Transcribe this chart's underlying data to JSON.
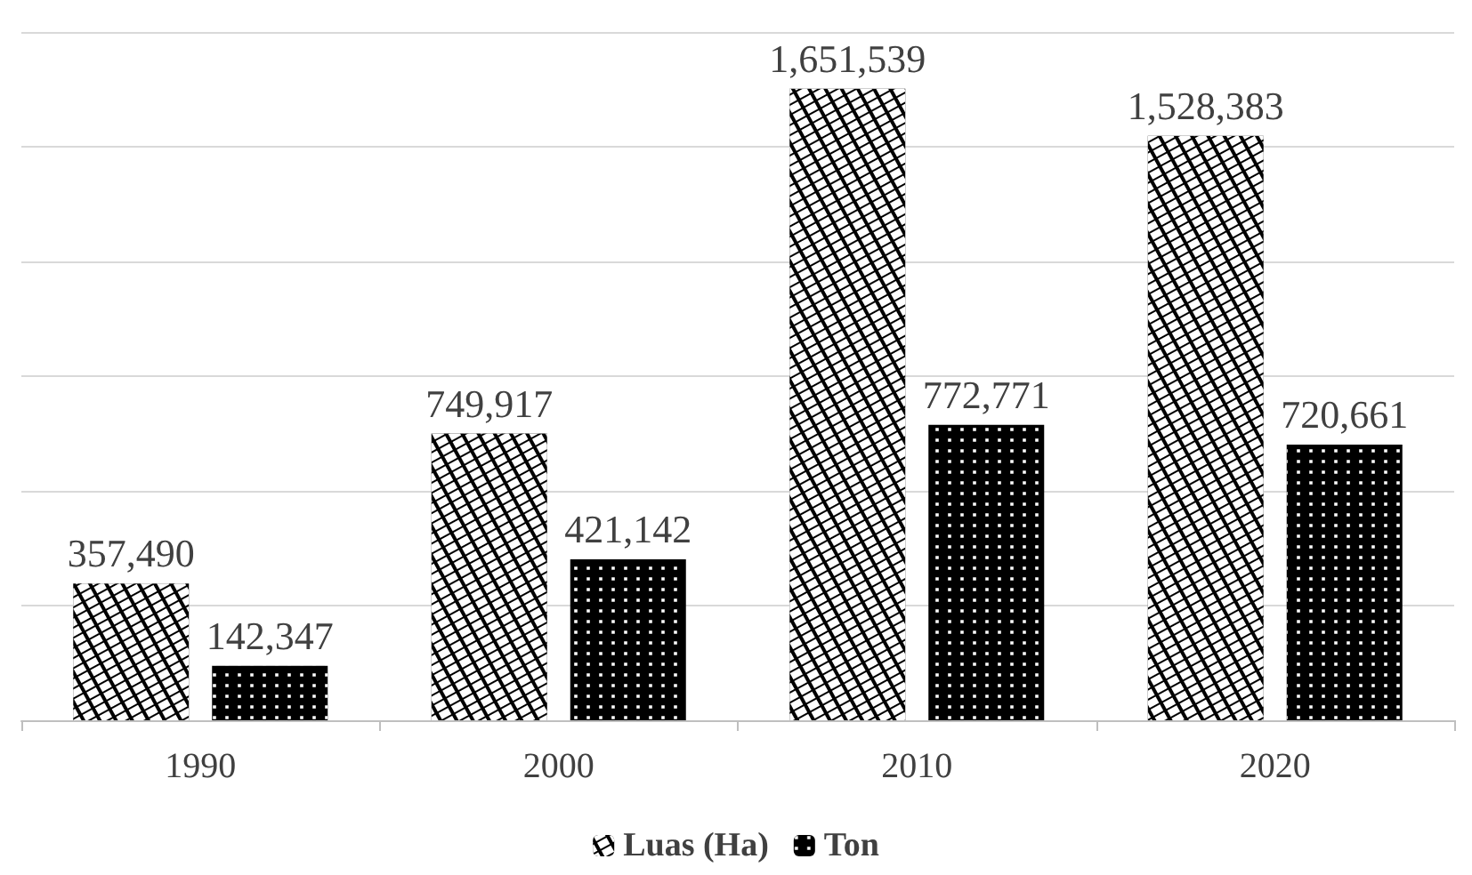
{
  "chart_data": {
    "type": "bar",
    "categories": [
      "1990",
      "2000",
      "2010",
      "2020"
    ],
    "series": [
      {
        "name": "Luas (Ha)",
        "color": "#000000",
        "values": [
          357490,
          749917,
          1651539,
          1528383
        ],
        "value_labels": [
          "357,490",
          "749,917",
          "1,651,539",
          "1,528,383"
        ]
      },
      {
        "name": "Ton",
        "color": "#000000",
        "values": [
          142347,
          421142,
          772771,
          720661
        ],
        "value_labels": [
          "142,347",
          "421,142",
          "772,771",
          "720,661"
        ]
      }
    ],
    "grid": "y",
    "legend": "bottom",
    "tick_labels": "x"
  }
}
